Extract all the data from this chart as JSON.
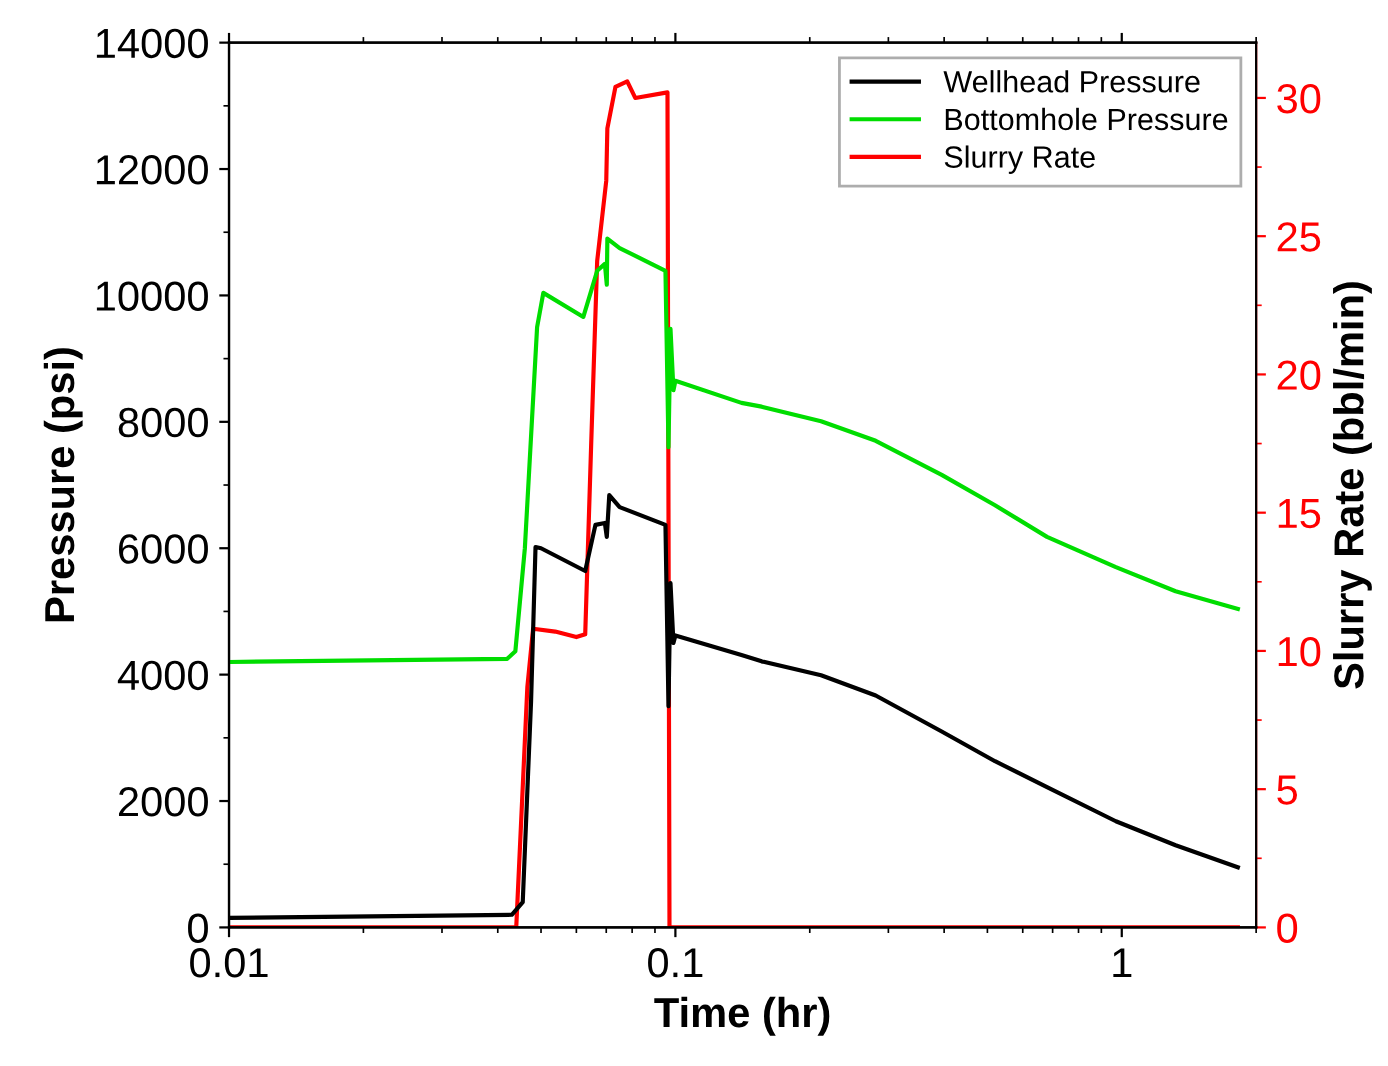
{
  "chart_data": {
    "type": "line",
    "xlabel": "Time (hr)",
    "ylabel": "Pressure (psi)",
    "y2label": "Slurry Rate (bbl/min)",
    "log": "x",
    "xlim": [
      0.01,
      2
    ],
    "xticks": [
      0.01,
      0.1,
      1
    ],
    "ylim": [
      0,
      14000
    ],
    "yticks": [
      0,
      2000,
      4000,
      6000,
      8000,
      10000,
      12000,
      14000
    ],
    "y2lim": [
      0,
      32
    ],
    "y2ticks": [
      0,
      5,
      10,
      15,
      20,
      25,
      30
    ],
    "legend": "top right",
    "grid": false,
    "marker": "none",
    "line_style": "solid",
    "series": [
      {
        "name": "Wellhead Pressure",
        "color": "#000000",
        "x": [
          0.01,
          0.043,
          0.0455,
          0.0475,
          0.0486,
          0.05,
          0.0628,
          0.0662,
          0.0695,
          0.0702,
          0.0711,
          0.075,
          0.095,
          0.0965,
          0.0975,
          0.099,
          0.1,
          0.1406,
          0.156,
          0.212,
          0.281,
          0.395,
          0.52,
          0.68,
          0.97,
          1.32,
          1.82
        ],
        "values": [
          150,
          200,
          400,
          3580,
          6020,
          6000,
          5640,
          6370,
          6400,
          6180,
          6840,
          6650,
          6370,
          3500,
          5450,
          4500,
          4620,
          4310,
          4210,
          3990,
          3670,
          3100,
          2630,
          2220,
          1680,
          1300,
          950
        ]
      },
      {
        "name": "Bottomhole Pressure",
        "color": "#00dd00",
        "x": [
          0.01,
          0.042,
          0.0438,
          0.046,
          0.049,
          0.0506,
          0.0622,
          0.0668,
          0.0695,
          0.0702,
          0.0704,
          0.075,
          0.095,
          0.0965,
          0.0975,
          0.099,
          0.1,
          0.1406,
          0.156,
          0.212,
          0.281,
          0.395,
          0.52,
          0.68,
          0.97,
          1.32,
          1.82
        ],
        "values": [
          4200,
          4250,
          4370,
          6000,
          9500,
          10040,
          9660,
          10390,
          10500,
          10170,
          10900,
          10750,
          10390,
          7600,
          9470,
          8500,
          8650,
          8300,
          8240,
          8010,
          7700,
          7160,
          6680,
          6180,
          5700,
          5320,
          5040
        ]
      },
      {
        "name": "Slurry Rate",
        "color": "#ff0000",
        "axis": "y2",
        "x": [
          0.01,
          0.044,
          0.0466,
          0.048,
          0.0538,
          0.06,
          0.0628,
          0.0648,
          0.0668,
          0.07,
          0.0704,
          0.0734,
          0.078,
          0.0813,
          0.096,
          0.097,
          1.82
        ],
        "values": [
          0,
          0,
          8.7,
          10.8,
          10.7,
          10.5,
          10.6,
          17.6,
          24.1,
          27.0,
          28.9,
          30.4,
          30.6,
          30.0,
          30.2,
          0,
          0
        ]
      }
    ]
  }
}
